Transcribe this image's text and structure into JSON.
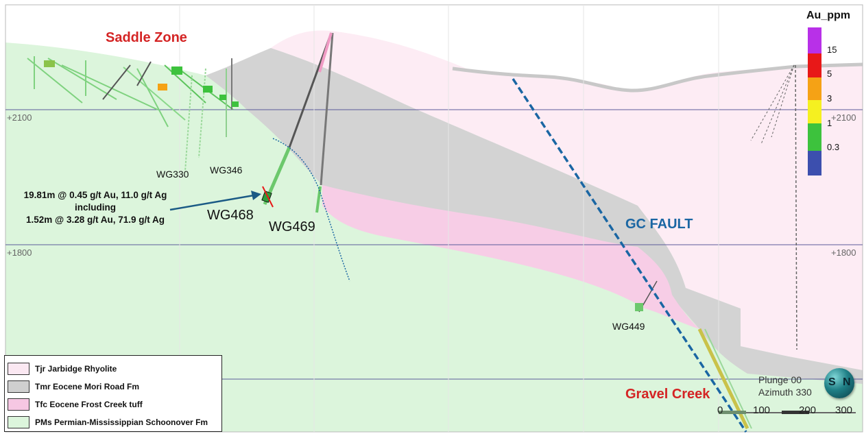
{
  "title_labels": {
    "saddle_zone": "Saddle Zone",
    "gravel_creek": "Gravel Creek",
    "gc_fault": "GC FAULT"
  },
  "drillholes": [
    "WG330",
    "WG346",
    "WG468",
    "WG469",
    "WG449"
  ],
  "elevations": {
    "upper_left": "+2100",
    "upper_right": "+2100",
    "lower_left": "+1800",
    "lower_right": "+1800"
  },
  "callout": {
    "line1": "19.81m @ 0.45 g/t Au, 11.0 g/t Ag",
    "line2": "including",
    "line3": "1.52m @ 3.28 g/t Au, 71.9 g/t Ag"
  },
  "legend": [
    {
      "label": "Tjr Jarbidge Rhyolite",
      "color": "#fbe8f2"
    },
    {
      "label": "Tmr Eocene Mori Road Fm",
      "color": "#cfcfcf"
    },
    {
      "label": "Tfc Eocene  Frost Creek tuff",
      "color": "#f6c7e3"
    },
    {
      "label": "PMs Permian-Mississippian Schoonover Fm",
      "color": "#dcf5dc"
    }
  ],
  "colorbar": {
    "title": "Au_ppm",
    "ticks": [
      "15",
      "5",
      "3",
      "1",
      "0.3"
    ],
    "colors": [
      "#b830e8",
      "#e81818",
      "#f5a215",
      "#f5f020",
      "#3dc23d",
      "#3c4fae"
    ]
  },
  "orientation": {
    "plunge": "Plunge 00",
    "azimuth": "Azimuth 330"
  },
  "scale_bar": [
    "0",
    "100",
    "200",
    "300"
  ],
  "compass_letters": {
    "left": "S",
    "right": "N"
  }
}
